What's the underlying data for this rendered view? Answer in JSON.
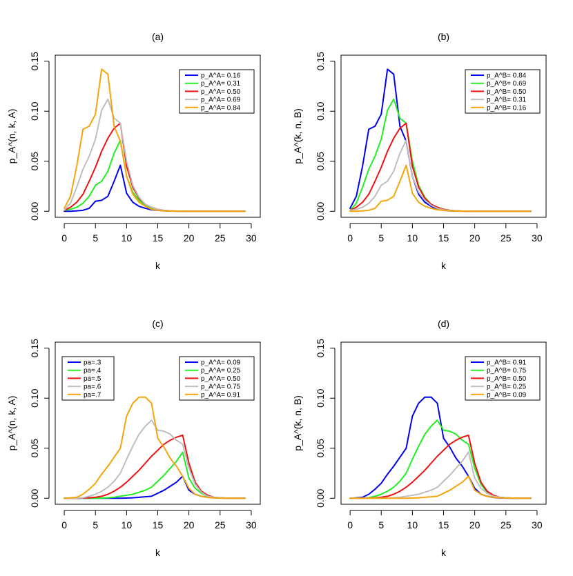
{
  "chart_data": [
    {
      "type": "line",
      "title": "(a)",
      "xlabel": "k",
      "ylabel": "p_A^(n, k, A)",
      "xlim": [
        0,
        30
      ],
      "ylim": [
        0,
        0.15
      ],
      "xticks": [
        "0",
        "5",
        "10",
        "15",
        "20",
        "25",
        "30"
      ],
      "yticks": [
        "0.00",
        "0.05",
        "0.10",
        "0.15"
      ],
      "legends": [
        {
          "position": "top-right",
          "entries": [
            {
              "label": "p_A^A= 0.16",
              "color": "#0000ee"
            },
            {
              "label": "p_A^A= 0.31",
              "color": "#22ee22"
            },
            {
              "label": "p_A^A= 0.50",
              "color": "#ee1111"
            },
            {
              "label": "p_A^A= 0.69",
              "color": "#bebebe"
            },
            {
              "label": "p_A^A= 0.84",
              "color": "#f5a50a"
            }
          ]
        }
      ],
      "x": [
        0,
        1,
        2,
        3,
        4,
        5,
        6,
        7,
        8,
        9,
        10,
        11,
        12,
        13,
        14,
        15,
        16,
        17,
        18,
        19,
        20,
        21,
        22,
        23,
        24,
        25,
        26,
        27,
        28,
        29
      ],
      "series": [
        {
          "name": "p_A^A= 0.16",
          "color": "#0000ee",
          "values": [
            0,
            0,
            0.0005,
            0.001,
            0.003,
            0.01,
            0.011,
            0.015,
            0.03,
            0.046,
            0.018,
            0.009,
            0.005,
            0.003,
            0.0015,
            0.001,
            0.0005,
            0.0002,
            0.0001,
            0,
            0,
            0,
            0,
            0,
            0,
            0,
            0,
            0,
            0,
            0
          ]
        },
        {
          "name": "p_A^A= 0.31",
          "color": "#22ee22",
          "values": [
            0.001,
            0.002,
            0.004,
            0.008,
            0.015,
            0.026,
            0.03,
            0.04,
            0.058,
            0.071,
            0.035,
            0.019,
            0.011,
            0.006,
            0.003,
            0.0015,
            0.0008,
            0.0004,
            0.0002,
            0.0001,
            0,
            0,
            0,
            0,
            0,
            0,
            0,
            0,
            0,
            0
          ]
        },
        {
          "name": "p_A^A= 0.50",
          "color": "#ee1111",
          "values": [
            0.001,
            0.004,
            0.009,
            0.017,
            0.03,
            0.044,
            0.06,
            0.073,
            0.083,
            0.088,
            0.045,
            0.024,
            0.013,
            0.007,
            0.004,
            0.002,
            0.001,
            0.0005,
            0.0002,
            0.0001,
            0,
            0,
            0,
            0,
            0,
            0,
            0,
            0,
            0,
            0
          ]
        },
        {
          "name": "p_A^A= 0.69",
          "color": "#bebebe",
          "values": [
            0.001,
            0.008,
            0.024,
            0.042,
            0.055,
            0.072,
            0.101,
            0.112,
            0.093,
            0.088,
            0.05,
            0.026,
            0.014,
            0.007,
            0.004,
            0.002,
            0.001,
            0.0005,
            0.0002,
            0.0001,
            0,
            0,
            0,
            0,
            0,
            0,
            0,
            0,
            0,
            0
          ]
        },
        {
          "name": "p_A^A= 0.84",
          "color": "#f5a50a",
          "values": [
            0.003,
            0.015,
            0.045,
            0.082,
            0.085,
            0.097,
            0.142,
            0.137,
            0.085,
            0.07,
            0.035,
            0.017,
            0.009,
            0.005,
            0.002,
            0.001,
            0.0005,
            0.0002,
            0.0001,
            0,
            0,
            0,
            0,
            0,
            0,
            0,
            0,
            0,
            0,
            0
          ]
        }
      ]
    },
    {
      "type": "line",
      "title": "(b)",
      "xlabel": "k",
      "ylabel": "p_A^(k, n, B)",
      "xlim": [
        0,
        30
      ],
      "ylim": [
        0,
        0.15
      ],
      "xticks": [
        "0",
        "5",
        "10",
        "15",
        "20",
        "25",
        "30"
      ],
      "yticks": [
        "0.00",
        "0.05",
        "0.10",
        "0.15"
      ],
      "legends": [
        {
          "position": "top-right",
          "entries": [
            {
              "label": "p_A^B= 0.84",
              "color": "#0000ee"
            },
            {
              "label": "p_A^B= 0.69",
              "color": "#22ee22"
            },
            {
              "label": "p_A^B= 0.50",
              "color": "#ee1111"
            },
            {
              "label": "p_A^B= 0.31",
              "color": "#bebebe"
            },
            {
              "label": "p_A^B= 0.16",
              "color": "#f5a50a"
            }
          ]
        }
      ],
      "x": [
        0,
        1,
        2,
        3,
        4,
        5,
        6,
        7,
        8,
        9,
        10,
        11,
        12,
        13,
        14,
        15,
        16,
        17,
        18,
        19,
        20,
        21,
        22,
        23,
        24,
        25,
        26,
        27,
        28,
        29
      ],
      "series": [
        {
          "name": "p_A^B= 0.84",
          "color": "#0000ee",
          "values": [
            0.003,
            0.015,
            0.045,
            0.082,
            0.085,
            0.097,
            0.142,
            0.137,
            0.085,
            0.07,
            0.035,
            0.017,
            0.009,
            0.005,
            0.002,
            0.001,
            0.0005,
            0.0002,
            0.0001,
            0,
            0,
            0,
            0,
            0,
            0,
            0,
            0,
            0,
            0,
            0
          ]
        },
        {
          "name": "p_A^B= 0.69",
          "color": "#22ee22",
          "values": [
            0.001,
            0.008,
            0.024,
            0.042,
            0.055,
            0.072,
            0.101,
            0.112,
            0.093,
            0.088,
            0.05,
            0.026,
            0.014,
            0.007,
            0.004,
            0.002,
            0.001,
            0.0005,
            0.0002,
            0.0001,
            0,
            0,
            0,
            0,
            0,
            0,
            0,
            0,
            0,
            0
          ]
        },
        {
          "name": "p_A^B= 0.50",
          "color": "#ee1111",
          "values": [
            0.001,
            0.004,
            0.009,
            0.017,
            0.03,
            0.044,
            0.06,
            0.073,
            0.083,
            0.088,
            0.045,
            0.024,
            0.013,
            0.007,
            0.004,
            0.002,
            0.001,
            0.0005,
            0.0002,
            0.0001,
            0,
            0,
            0,
            0,
            0,
            0,
            0,
            0,
            0,
            0
          ]
        },
        {
          "name": "p_A^B= 0.31",
          "color": "#bebebe",
          "values": [
            0.001,
            0.002,
            0.004,
            0.008,
            0.015,
            0.026,
            0.03,
            0.04,
            0.058,
            0.071,
            0.035,
            0.019,
            0.011,
            0.006,
            0.003,
            0.0015,
            0.0008,
            0.0004,
            0.0002,
            0.0001,
            0,
            0,
            0,
            0,
            0,
            0,
            0,
            0,
            0,
            0
          ]
        },
        {
          "name": "p_A^B= 0.16",
          "color": "#f5a50a",
          "values": [
            0,
            0,
            0.0005,
            0.001,
            0.003,
            0.01,
            0.011,
            0.015,
            0.03,
            0.046,
            0.018,
            0.009,
            0.005,
            0.003,
            0.0015,
            0.001,
            0.0005,
            0.0002,
            0.0001,
            0,
            0,
            0,
            0,
            0,
            0,
            0,
            0,
            0,
            0,
            0
          ]
        }
      ]
    },
    {
      "type": "line",
      "title": "(c)",
      "xlabel": "k",
      "ylabel": "p_A^(n, k, A)",
      "xlim": [
        0,
        30
      ],
      "ylim": [
        0,
        0.15
      ],
      "xticks": [
        "0",
        "5",
        "10",
        "15",
        "20",
        "25",
        "30"
      ],
      "yticks": [
        "0.00",
        "0.05",
        "0.10",
        "0.15"
      ],
      "legends": [
        {
          "position": "top-left",
          "entries": [
            {
              "label": "pa=.3",
              "color": "#0000ee"
            },
            {
              "label": "pa=.4",
              "color": "#22ee22"
            },
            {
              "label": "pa=.5",
              "color": "#ee1111"
            },
            {
              "label": "pa=.6",
              "color": "#bebebe"
            },
            {
              "label": "pa=.7",
              "color": "#f5a50a"
            }
          ]
        },
        {
          "position": "top-right",
          "entries": [
            {
              "label": "p_A^A= 0.09",
              "color": "#0000ee"
            },
            {
              "label": "p_A^A= 0.25",
              "color": "#22ee22"
            },
            {
              "label": "p_A^A= 0.50",
              "color": "#ee1111"
            },
            {
              "label": "p_A^A= 0.75",
              "color": "#bebebe"
            },
            {
              "label": "p_A^A= 0.91",
              "color": "#f5a50a"
            }
          ]
        }
      ],
      "x": [
        0,
        1,
        2,
        3,
        4,
        5,
        6,
        7,
        8,
        9,
        10,
        11,
        12,
        13,
        14,
        15,
        16,
        17,
        18,
        19,
        20,
        21,
        22,
        23,
        24,
        25,
        26,
        27,
        28,
        29
      ],
      "series": [
        {
          "name": "pa=.3",
          "color": "#0000ee",
          "values": [
            0,
            0,
            0,
            0,
            0,
            0,
            0,
            0,
            0,
            0,
            0.0002,
            0.0005,
            0.001,
            0.0015,
            0.002,
            0.005,
            0.008,
            0.012,
            0.016,
            0.022,
            0.008,
            0.004,
            0.002,
            0.001,
            0.0005,
            0.0002,
            0.0001,
            0,
            0,
            0
          ]
        },
        {
          "name": "pa=.4",
          "color": "#22ee22",
          "values": [
            0,
            0,
            0,
            0,
            0,
            0,
            0.0002,
            0.0005,
            0.001,
            0.002,
            0.003,
            0.004,
            0.006,
            0.008,
            0.011,
            0.017,
            0.023,
            0.03,
            0.037,
            0.046,
            0.02,
            0.01,
            0.005,
            0.002,
            0.001,
            0.0005,
            0.0002,
            0.0001,
            0,
            0
          ]
        },
        {
          "name": "pa=.5",
          "color": "#ee1111",
          "values": [
            0,
            0,
            0,
            0.0002,
            0.0005,
            0.001,
            0.002,
            0.004,
            0.007,
            0.011,
            0.016,
            0.022,
            0.028,
            0.035,
            0.042,
            0.048,
            0.054,
            0.058,
            0.061,
            0.063,
            0.035,
            0.016,
            0.007,
            0.003,
            0.001,
            0.0005,
            0.0002,
            0.0001,
            0,
            0
          ]
        },
        {
          "name": "pa=.6",
          "color": "#bebebe",
          "values": [
            0,
            0,
            0.0002,
            0.0005,
            0.002,
            0.004,
            0.007,
            0.011,
            0.017,
            0.025,
            0.039,
            0.052,
            0.064,
            0.072,
            0.078,
            0.068,
            0.067,
            0.064,
            0.058,
            0.054,
            0.03,
            0.014,
            0.006,
            0.002,
            0.001,
            0.0005,
            0.0002,
            0.0001,
            0,
            0
          ]
        },
        {
          "name": "pa=.7",
          "color": "#f5a50a",
          "values": [
            0,
            0.0005,
            0.001,
            0.004,
            0.009,
            0.015,
            0.024,
            0.032,
            0.041,
            0.05,
            0.082,
            0.095,
            0.101,
            0.101,
            0.095,
            0.06,
            0.051,
            0.04,
            0.032,
            0.022,
            0.01,
            0.004,
            0.002,
            0.0008,
            0.0003,
            0.0001,
            0,
            0,
            0,
            0
          ]
        }
      ]
    },
    {
      "type": "line",
      "title": "(d)",
      "xlabel": "k",
      "ylabel": "p_A^(k, n, B)",
      "xlim": [
        0,
        30
      ],
      "ylim": [
        0,
        0.15
      ],
      "xticks": [
        "0",
        "5",
        "10",
        "15",
        "20",
        "25",
        "30"
      ],
      "yticks": [
        "0.00",
        "0.05",
        "0.10",
        "0.15"
      ],
      "legends": [
        {
          "position": "top-right",
          "entries": [
            {
              "label": "p_A^B= 0.91",
              "color": "#0000ee"
            },
            {
              "label": "p_A^B= 0.75",
              "color": "#22ee22"
            },
            {
              "label": "p_A^B= 0.50",
              "color": "#ee1111"
            },
            {
              "label": "p_A^B= 0.25",
              "color": "#bebebe"
            },
            {
              "label": "p_A^B= 0.09",
              "color": "#f5a50a"
            }
          ]
        }
      ],
      "x": [
        0,
        1,
        2,
        3,
        4,
        5,
        6,
        7,
        8,
        9,
        10,
        11,
        12,
        13,
        14,
        15,
        16,
        17,
        18,
        19,
        20,
        21,
        22,
        23,
        24,
        25,
        26,
        27,
        28,
        29
      ],
      "series": [
        {
          "name": "p_A^B= 0.91",
          "color": "#0000ee",
          "values": [
            0,
            0.0005,
            0.001,
            0.004,
            0.009,
            0.015,
            0.024,
            0.032,
            0.041,
            0.05,
            0.082,
            0.095,
            0.101,
            0.101,
            0.095,
            0.06,
            0.051,
            0.04,
            0.032,
            0.022,
            0.01,
            0.004,
            0.002,
            0.0008,
            0.0003,
            0.0001,
            0,
            0,
            0,
            0
          ]
        },
        {
          "name": "p_A^B= 0.75",
          "color": "#22ee22",
          "values": [
            0,
            0,
            0.0002,
            0.0005,
            0.002,
            0.004,
            0.007,
            0.011,
            0.017,
            0.025,
            0.039,
            0.052,
            0.064,
            0.072,
            0.078,
            0.068,
            0.067,
            0.064,
            0.058,
            0.054,
            0.03,
            0.014,
            0.006,
            0.002,
            0.001,
            0.0005,
            0.0002,
            0.0001,
            0,
            0
          ]
        },
        {
          "name": "p_A^B= 0.50",
          "color": "#ee1111",
          "values": [
            0,
            0,
            0,
            0.0002,
            0.0005,
            0.001,
            0.002,
            0.004,
            0.007,
            0.011,
            0.016,
            0.022,
            0.028,
            0.035,
            0.042,
            0.048,
            0.054,
            0.058,
            0.061,
            0.063,
            0.035,
            0.016,
            0.007,
            0.003,
            0.001,
            0.0005,
            0.0002,
            0.0001,
            0,
            0
          ]
        },
        {
          "name": "p_A^B= 0.25",
          "color": "#bebebe",
          "values": [
            0,
            0,
            0,
            0,
            0,
            0,
            0.0002,
            0.0005,
            0.001,
            0.002,
            0.003,
            0.004,
            0.006,
            0.008,
            0.011,
            0.017,
            0.023,
            0.03,
            0.037,
            0.046,
            0.02,
            0.01,
            0.005,
            0.002,
            0.001,
            0.0005,
            0.0002,
            0.0001,
            0,
            0
          ]
        },
        {
          "name": "p_A^B= 0.09",
          "color": "#f5a50a",
          "values": [
            0,
            0,
            0,
            0,
            0,
            0,
            0,
            0,
            0,
            0,
            0.0002,
            0.0005,
            0.001,
            0.0015,
            0.002,
            0.005,
            0.008,
            0.012,
            0.016,
            0.022,
            0.008,
            0.004,
            0.002,
            0.001,
            0.0005,
            0.0002,
            0.0001,
            0,
            0,
            0
          ]
        }
      ]
    }
  ]
}
